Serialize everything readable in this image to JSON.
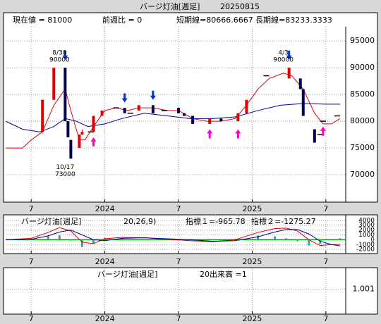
{
  "chart_data": [
    {
      "type": "candlestick",
      "title": "バージ灯油[週足]",
      "date": "20250815",
      "stats": [
        "現在値 = 81000",
        "前週比 = 0",
        "短期線=80666.6667",
        "長期線=83233.3333"
      ],
      "xlim": [
        -9,
        111
      ],
      "xticks": [
        {
          "value": 0,
          "label": "7"
        },
        {
          "value": 26,
          "label": "2024"
        },
        {
          "value": 52,
          "label": "7"
        },
        {
          "value": 78,
          "label": "2025"
        },
        {
          "value": 104,
          "label": "7"
        }
      ],
      "ylim": [
        65000,
        97400
      ],
      "yticks": [
        70000,
        75000,
        80000,
        85000,
        90000,
        95000
      ],
      "grid": true,
      "up_color": "#e00000",
      "down_color": "#000050",
      "flat_color": "#000000",
      "candles": {
        "x": [
          4,
          8,
          12,
          13,
          14,
          17,
          18,
          21,
          22,
          25,
          30,
          33,
          35,
          38,
          43,
          47,
          52,
          54,
          57,
          63,
          67,
          73,
          76,
          83,
          91,
          95,
          96,
          100,
          102,
          103,
          108
        ],
        "open": [
          78000,
          84000,
          90000,
          80000,
          76500,
          75000,
          77500,
          78000,
          78000,
          81000,
          82500,
          82500,
          81500,
          82000,
          83000,
          82000,
          82500,
          81500,
          81000,
          79500,
          80500,
          80000,
          81500,
          88500,
          88000,
          88000,
          86000,
          78500,
          77500,
          80000,
          81000
        ],
        "high": [
          84000,
          90000,
          90000,
          80000,
          76500,
          77500,
          78500,
          78000,
          81000,
          82000,
          82500,
          82500,
          81500,
          83000,
          83000,
          82000,
          82500,
          81500,
          81000,
          80500,
          80500,
          81500,
          84000,
          88500,
          90000,
          88000,
          86000,
          78500,
          77500,
          80000,
          81000
        ],
        "low": [
          78000,
          84000,
          80000,
          77000,
          73000,
          75000,
          77500,
          78000,
          78000,
          81000,
          82500,
          81500,
          81500,
          82000,
          81500,
          82000,
          81500,
          81000,
          79500,
          79500,
          80000,
          80000,
          81500,
          88500,
          88000,
          86000,
          81000,
          76000,
          77500,
          80000,
          81000
        ],
        "close": [
          84000,
          90000,
          80000,
          77000,
          73000,
          77500,
          78000,
          78000,
          81000,
          82000,
          82500,
          81500,
          81500,
          83000,
          81500,
          82000,
          81500,
          81000,
          79500,
          80500,
          80000,
          81500,
          84000,
          88500,
          90000,
          86000,
          81000,
          76000,
          77500,
          80000,
          81000
        ]
      },
      "lines": [
        {
          "color": "#e00000",
          "x": [
            -9,
            -3,
            0,
            4,
            8,
            12,
            14,
            17,
            19,
            22,
            26,
            30,
            34,
            38,
            43,
            48,
            52,
            57,
            62,
            67,
            72,
            76,
            80,
            84,
            89,
            92,
            96,
            100,
            103,
            106,
            109
          ],
          "values": [
            75000,
            75000,
            76500,
            78000,
            83000,
            86000,
            82000,
            76500,
            76500,
            79000,
            82000,
            82500,
            82000,
            82500,
            82500,
            82000,
            82000,
            80500,
            80000,
            80000,
            80500,
            83000,
            86000,
            88000,
            89000,
            88500,
            86000,
            81500,
            79500,
            79500,
            80500
          ]
        },
        {
          "color": "#000090",
          "x": [
            -9,
            -3,
            3,
            8,
            12,
            16,
            20,
            26,
            32,
            40,
            48,
            56,
            64,
            72,
            80,
            88,
            96,
            104,
            109
          ],
          "values": [
            80000,
            78500,
            78000,
            79000,
            80500,
            80000,
            79000,
            79500,
            80500,
            81500,
            81000,
            80500,
            80500,
            80800,
            82000,
            83000,
            83300,
            83200,
            83200
          ]
        }
      ],
      "sell_arrows": {
        "color": "#0030d0",
        "x": [
          12,
          33,
          43,
          91
        ],
        "values": [
          91500,
          83500,
          84000,
          91500
        ]
      },
      "buy_arrows": {
        "color": "#ff00c0",
        "x": [
          22,
          63,
          73,
          103
        ],
        "values": [
          77000,
          78500,
          78500,
          79000
        ]
      },
      "annotations": [
        {
          "label": "8/30",
          "value": 90000,
          "x": 12,
          "position": "above"
        },
        {
          "label": "10/17",
          "value": 73000,
          "x": 14,
          "position": "below"
        },
        {
          "label": "4/3",
          "value": 90000,
          "x": 91,
          "position": "above"
        }
      ]
    },
    {
      "type": "macd",
      "title": "バージ灯油[週足]",
      "params": "20,26,9)",
      "indicator1": "指標１=-965.78",
      "indicator2": "指標２=-1275.27",
      "xlim": [
        -9,
        111
      ],
      "xticks": [
        {
          "value": 0,
          "label": "7"
        },
        {
          "value": 26,
          "label": "2024"
        },
        {
          "value": 52,
          "label": "7"
        },
        {
          "value": 78,
          "label": "2025"
        },
        {
          "value": 104,
          "label": "7"
        }
      ],
      "ylim": [
        -2700,
        4700
      ],
      "yticks": [
        -2000,
        -1000,
        0,
        1000,
        2000,
        3000,
        4000
      ],
      "grid": true,
      "zero_color": "#00a000",
      "histogram_color": "#40a0a0",
      "x": [
        -9,
        0,
        6,
        10,
        14,
        18,
        22,
        26,
        32,
        40,
        48,
        56,
        64,
        72,
        80,
        86,
        90,
        94,
        98,
        102,
        106,
        109
      ],
      "histogram": [
        0,
        200,
        700,
        900,
        -200,
        -1500,
        -800,
        400,
        200,
        0,
        -100,
        -200,
        -100,
        200,
        900,
        700,
        300,
        -300,
        -1200,
        -900,
        0,
        309.49
      ],
      "lines": [
        {
          "color": "#e00000",
          "values": [
            0,
            300,
            1500,
            2500,
            1800,
            -500,
            -800,
            200,
            500,
            400,
            100,
            -200,
            -400,
            0,
            1500,
            2300,
            2400,
            1800,
            0,
            -1200,
            -1000,
            -965.78
          ]
        },
        {
          "color": "#000090",
          "values": [
            0,
            100,
            800,
            1600,
            2000,
            1000,
            0,
            -200,
            300,
            400,
            200,
            0,
            -300,
            -200,
            600,
            1600,
            2100,
            2100,
            1200,
            -300,
            -1000,
            -1275.27
          ]
        }
      ]
    },
    {
      "type": "volume",
      "title": "バージ灯油[週足]",
      "label": "20出来高 =1",
      "xlim": [
        -9,
        111
      ],
      "xticks": [
        {
          "value": 0,
          "label": "7"
        },
        {
          "value": 26,
          "label": "2024"
        },
        {
          "value": 52,
          "label": "7"
        },
        {
          "value": 78,
          "label": "2025"
        },
        {
          "value": 104,
          "label": "7"
        }
      ],
      "ylim": [
        0,
        1.8
      ],
      "yticks": [
        1.001
      ],
      "grid": true
    }
  ]
}
